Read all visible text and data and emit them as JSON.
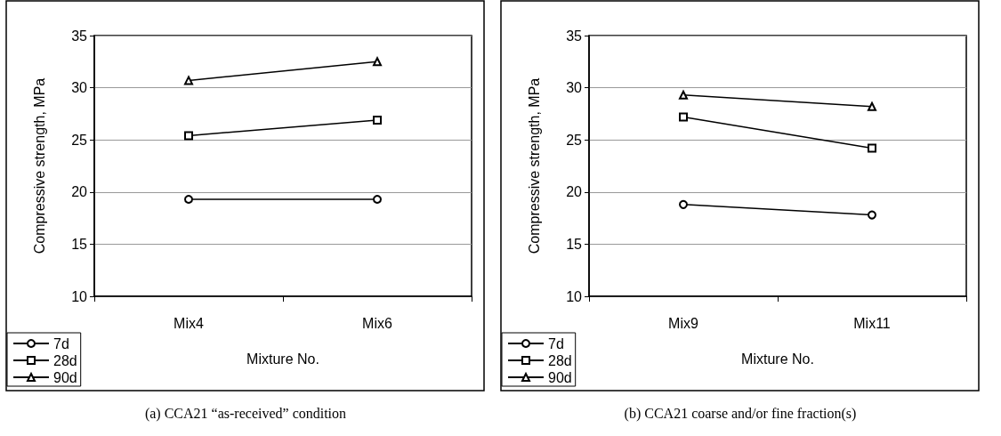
{
  "chart_data": [
    {
      "type": "line",
      "xlabel": "Mixture No.",
      "ylabel": "Compressive strength, MPa",
      "categories": [
        "Mix4",
        "Mix6"
      ],
      "series": [
        {
          "name": "7d",
          "color": "#000000",
          "marker": "circle",
          "values": [
            19.3,
            19.3
          ]
        },
        {
          "name": "28d",
          "color": "#000000",
          "marker": "square",
          "values": [
            25.4,
            26.9
          ]
        },
        {
          "name": "90d",
          "color": "#000000",
          "marker": "triangle",
          "values": [
            30.7,
            32.5
          ]
        }
      ],
      "ylim": [
        10,
        35
      ],
      "yticks": [
        10,
        15,
        20,
        25,
        30,
        35
      ],
      "grid": "y",
      "legend": "bottom left",
      "annotations": [
        "(a) CCA21 “as-received” condition"
      ]
    },
    {
      "type": "line",
      "xlabel": "Mixture No.",
      "ylabel": "Compressive strength, MPa",
      "categories": [
        "Mix9",
        "Mix11"
      ],
      "series": [
        {
          "name": "7d",
          "color": "#000000",
          "marker": "circle",
          "values": [
            18.8,
            17.8
          ]
        },
        {
          "name": "28d",
          "color": "#000000",
          "marker": "square",
          "values": [
            27.2,
            24.2
          ]
        },
        {
          "name": "90d",
          "color": "#000000",
          "marker": "triangle",
          "values": [
            29.3,
            28.2
          ]
        }
      ],
      "ylim": [
        10,
        35
      ],
      "yticks": [
        10,
        15,
        20,
        25,
        30,
        35
      ],
      "grid": "y",
      "legend": "bottom left",
      "annotations": [
        "(b) CCA21 coarse and/or fine fraction(s)"
      ]
    }
  ]
}
